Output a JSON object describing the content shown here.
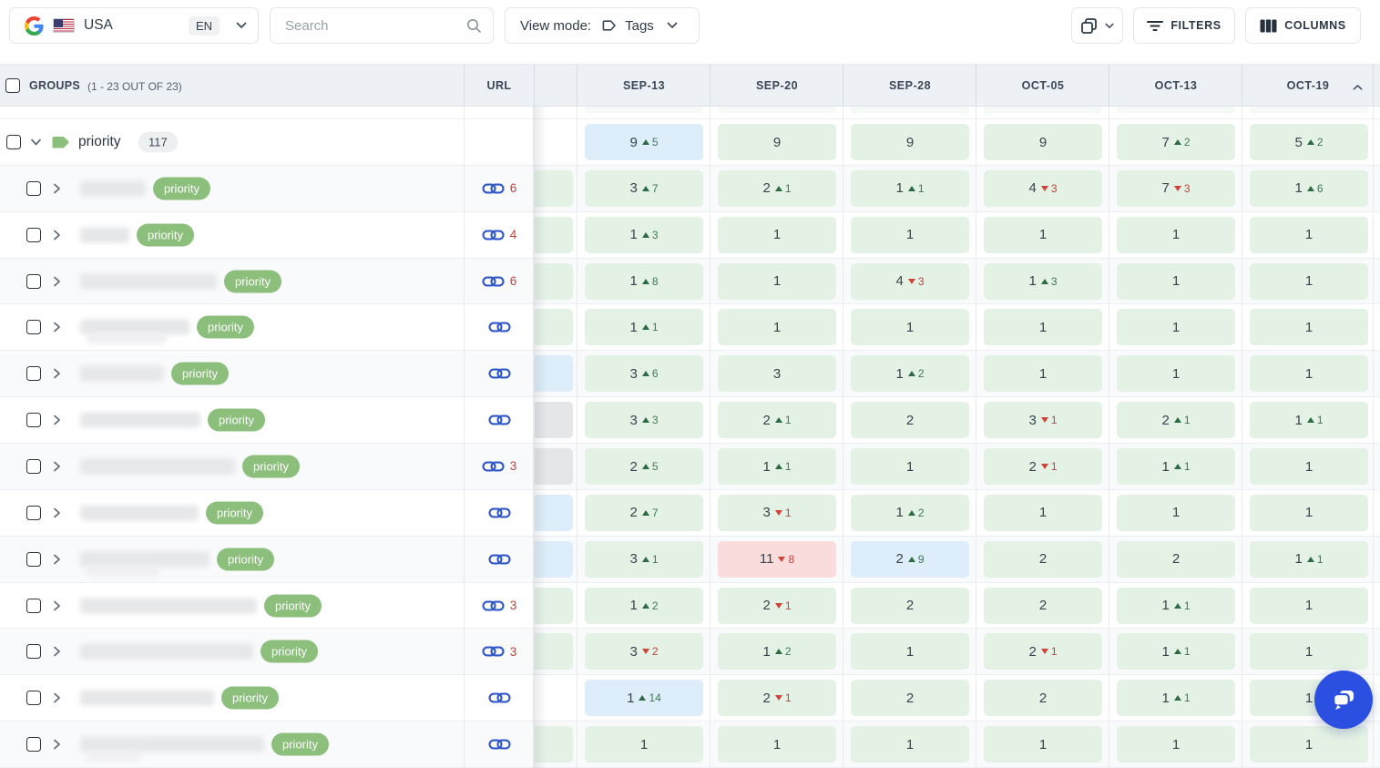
{
  "toolbar": {
    "locale": {
      "country": "USA",
      "language": "EN"
    },
    "search": {
      "placeholder": "Search"
    },
    "view_mode": {
      "label": "View mode:",
      "value": "Tags"
    },
    "filters_label": "FILTERS",
    "columns_label": "COLUMNS"
  },
  "icons": {
    "google": "google-g",
    "flag": "us-flag",
    "locale_chevron": "chevron-down",
    "search": "magnifier",
    "view_mode_tag": "tag",
    "view_mode_chevron": "chevron-down",
    "copy": "copy-pages",
    "copy_chevron": "chevron-down",
    "filters": "filter-lines",
    "columns": "columns-grid",
    "sort": "chevron-up",
    "url_link": "link-chain",
    "group_tag": "tag-solid",
    "chat": "chat-bubbles"
  },
  "colors": {
    "cell_green": "#e4f2e6",
    "cell_blue": "#ddedfa",
    "cell_pink": "#f9dcdb",
    "cell_gray": "#e4e6e8",
    "change_up": "#3c7a50",
    "change_down": "#c3423a",
    "pill_green": "#8cbf7c",
    "link_blue": "#3057c9",
    "link_count_red": "#bf4138",
    "header_bg": "#edf0f4",
    "chat_blue": "#2b4fe0"
  },
  "table": {
    "groups_header": {
      "label": "GROUPS",
      "range": "(1 - 23 OUT OF 23)"
    },
    "url_header": "URL",
    "dates": [
      "SEP-13",
      "SEP-20",
      "SEP-28",
      "OCT-05",
      "OCT-13",
      "OCT-19"
    ],
    "sorted_column": "OCT-19",
    "group_row": {
      "name": "priority",
      "count": "117",
      "partial": "none",
      "cells": [
        {
          "v": "9",
          "chg": "5",
          "dir": "up",
          "bg": "blue"
        },
        {
          "v": "9",
          "bg": "green"
        },
        {
          "v": "9",
          "bg": "green"
        },
        {
          "v": "9",
          "bg": "green"
        },
        {
          "v": "7",
          "chg": "2",
          "dir": "up",
          "bg": "green"
        },
        {
          "v": "5",
          "chg": "2",
          "dir": "up",
          "bg": "green"
        }
      ]
    },
    "rows": [
      {
        "tag": "priority",
        "links": "6",
        "partial": "green",
        "blur_w": 72,
        "cells": [
          {
            "v": "3",
            "chg": "7",
            "dir": "up"
          },
          {
            "v": "2",
            "chg": "1",
            "dir": "up"
          },
          {
            "v": "1",
            "chg": "1",
            "dir": "up"
          },
          {
            "v": "4",
            "chg": "3",
            "dir": "down"
          },
          {
            "v": "7",
            "chg": "3",
            "dir": "down"
          },
          {
            "v": "1",
            "chg": "6",
            "dir": "up"
          }
        ]
      },
      {
        "tag": "priority",
        "links": "4",
        "partial": "green",
        "blur_w": 54,
        "cells": [
          {
            "v": "1",
            "chg": "3",
            "dir": "up"
          },
          {
            "v": "1"
          },
          {
            "v": "1"
          },
          {
            "v": "1"
          },
          {
            "v": "1"
          },
          {
            "v": "1"
          }
        ]
      },
      {
        "tag": "priority",
        "links": "6",
        "partial": "green",
        "blur_w": 150,
        "cells": [
          {
            "v": "1",
            "chg": "8",
            "dir": "up"
          },
          {
            "v": "1"
          },
          {
            "v": "4",
            "chg": "3",
            "dir": "down"
          },
          {
            "v": "1",
            "chg": "3",
            "dir": "up"
          },
          {
            "v": "1"
          },
          {
            "v": "1"
          }
        ]
      },
      {
        "tag": "priority",
        "links": "",
        "partial": "green",
        "blur_w": 120,
        "blur2_w": 88,
        "cells": [
          {
            "v": "1",
            "chg": "1",
            "dir": "up"
          },
          {
            "v": "1"
          },
          {
            "v": "1"
          },
          {
            "v": "1"
          },
          {
            "v": "1"
          },
          {
            "v": "1"
          }
        ]
      },
      {
        "tag": "priority",
        "links": "",
        "partial": "blue",
        "blur_w": 92,
        "cells": [
          {
            "v": "3",
            "chg": "6",
            "dir": "up"
          },
          {
            "v": "3"
          },
          {
            "v": "1",
            "chg": "2",
            "dir": "up"
          },
          {
            "v": "1"
          },
          {
            "v": "1"
          },
          {
            "v": "1"
          }
        ]
      },
      {
        "tag": "priority",
        "links": "",
        "partial": "gray",
        "blur_w": 132,
        "cells": [
          {
            "v": "3",
            "chg": "3",
            "dir": "up"
          },
          {
            "v": "2",
            "chg": "1",
            "dir": "up"
          },
          {
            "v": "2"
          },
          {
            "v": "3",
            "chg": "1",
            "dir": "down"
          },
          {
            "v": "2",
            "chg": "1",
            "dir": "up"
          },
          {
            "v": "1",
            "chg": "1",
            "dir": "up"
          }
        ]
      },
      {
        "tag": "priority",
        "links": "3",
        "partial": "gray",
        "blur_w": 170,
        "cells": [
          {
            "v": "2",
            "chg": "5",
            "dir": "up"
          },
          {
            "v": "1",
            "chg": "1",
            "dir": "up"
          },
          {
            "v": "1"
          },
          {
            "v": "2",
            "chg": "1",
            "dir": "down"
          },
          {
            "v": "1",
            "chg": "1",
            "dir": "up"
          },
          {
            "v": "1"
          }
        ]
      },
      {
        "tag": "priority",
        "links": "",
        "partial": "blue",
        "blur_w": 130,
        "cells": [
          {
            "v": "2",
            "chg": "7",
            "dir": "up"
          },
          {
            "v": "3",
            "chg": "1",
            "dir": "down"
          },
          {
            "v": "1",
            "chg": "2",
            "dir": "up"
          },
          {
            "v": "1"
          },
          {
            "v": "1"
          },
          {
            "v": "1"
          }
        ]
      },
      {
        "tag": "priority",
        "links": "",
        "partial": "blue",
        "blur_w": 142,
        "blur2_w": 80,
        "cells": [
          {
            "v": "3",
            "chg": "1",
            "dir": "up"
          },
          {
            "v": "11",
            "chg": "8",
            "dir": "down",
            "bg": "pink"
          },
          {
            "v": "2",
            "chg": "9",
            "dir": "up",
            "bg": "blue"
          },
          {
            "v": "2"
          },
          {
            "v": "2"
          },
          {
            "v": "1",
            "chg": "1",
            "dir": "up"
          }
        ]
      },
      {
        "tag": "priority",
        "links": "3",
        "partial": "green",
        "blur_w": 194,
        "cells": [
          {
            "v": "1",
            "chg": "2",
            "dir": "up"
          },
          {
            "v": "2",
            "chg": "1",
            "dir": "down"
          },
          {
            "v": "2"
          },
          {
            "v": "2"
          },
          {
            "v": "1",
            "chg": "1",
            "dir": "up"
          },
          {
            "v": "1"
          }
        ]
      },
      {
        "tag": "priority",
        "links": "3",
        "partial": "green",
        "blur_w": 190,
        "cells": [
          {
            "v": "3",
            "chg": "2",
            "dir": "down"
          },
          {
            "v": "1",
            "chg": "2",
            "dir": "up"
          },
          {
            "v": "1"
          },
          {
            "v": "2",
            "chg": "1",
            "dir": "down"
          },
          {
            "v": "1",
            "chg": "1",
            "dir": "up"
          },
          {
            "v": "1"
          }
        ]
      },
      {
        "tag": "priority",
        "links": "",
        "partial": "none",
        "blur_w": 147,
        "cells": [
          {
            "v": "1",
            "chg": "14",
            "dir": "up",
            "bg": "blue"
          },
          {
            "v": "2",
            "chg": "1",
            "dir": "down"
          },
          {
            "v": "2"
          },
          {
            "v": "2"
          },
          {
            "v": "1",
            "chg": "1",
            "dir": "up"
          },
          {
            "v": "1"
          }
        ]
      },
      {
        "tag": "priority",
        "links": "",
        "partial": "green",
        "blur_w": 202,
        "blur2_w": 60,
        "cells": [
          {
            "v": "1"
          },
          {
            "v": "1"
          },
          {
            "v": "1"
          },
          {
            "v": "1"
          },
          {
            "v": "1"
          },
          {
            "v": "1"
          }
        ]
      }
    ]
  }
}
